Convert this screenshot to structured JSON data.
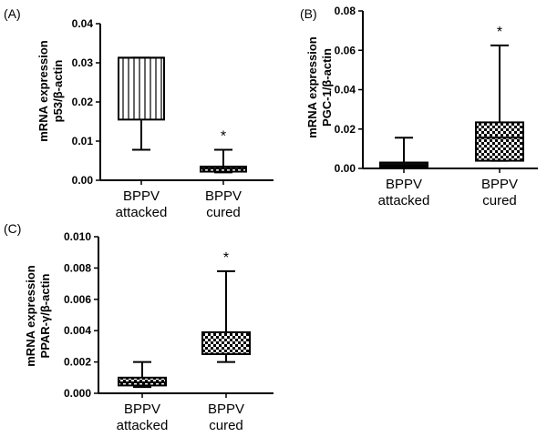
{
  "colors": {
    "ink": "#000000",
    "background": "#ffffff",
    "dark_fill": "#111111"
  },
  "chart_data": [
    {
      "id": "p53",
      "panel_label": "(A)",
      "type": "box",
      "ylabel_line1": "mRNA expression",
      "ylabel_line2": "p53/β-actin",
      "ylim": [
        0,
        0.04
      ],
      "yticks": [
        0.0,
        0.01,
        0.02,
        0.03,
        0.04
      ],
      "ytick_labels": [
        "0.00",
        "0.01",
        "0.02",
        "0.03",
        "0.04"
      ],
      "categories": [
        {
          "line1": "BPPV",
          "line2": "attacked",
          "min": 0.0078,
          "q1": 0.0155,
          "median": 0.0313,
          "q3": 0.0313,
          "max": 0.0313,
          "pattern": "vertical-lines",
          "annotation": ""
        },
        {
          "line1": "BPPV",
          "line2": "cured",
          "min": 0.002,
          "q1": 0.0022,
          "median": 0.003,
          "q3": 0.0035,
          "max": 0.0078,
          "pattern": "checker",
          "annotation": "*"
        }
      ]
    },
    {
      "id": "pgc1",
      "panel_label": "(B)",
      "type": "box",
      "ylabel_line1": "mRNA expression",
      "ylabel_line2": "PGC-1/β-actin",
      "ylim": [
        0,
        0.08
      ],
      "yticks": [
        0.0,
        0.02,
        0.04,
        0.06,
        0.08
      ],
      "ytick_labels": [
        "0.00",
        "0.02",
        "0.04",
        "0.06",
        "0.08"
      ],
      "categories": [
        {
          "line1": "BPPV",
          "line2": "attacked",
          "min": 0.0005,
          "q1": 0.0005,
          "median": 0.0015,
          "q3": 0.003,
          "max": 0.0156,
          "pattern": "solid",
          "annotation": ""
        },
        {
          "line1": "BPPV",
          "line2": "cured",
          "min": 0.0039,
          "q1": 0.0039,
          "median": 0.0156,
          "q3": 0.0234,
          "max": 0.0625,
          "pattern": "checker",
          "annotation": "*"
        }
      ]
    },
    {
      "id": "ppar",
      "panel_label": "(C)",
      "type": "box",
      "ylabel_line1": "mRNA expression",
      "ylabel_line2": "PPAR-γ/β-actin",
      "ylim": [
        0,
        0.01
      ],
      "yticks": [
        0.0,
        0.002,
        0.004,
        0.006,
        0.008,
        0.01
      ],
      "ytick_labels": [
        "0.000",
        "0.002",
        "0.004",
        "0.006",
        "0.008",
        "0.010"
      ],
      "categories": [
        {
          "line1": "BPPV",
          "line2": "attacked",
          "min": 0.0004,
          "q1": 0.0005,
          "median": 0.0007,
          "q3": 0.001,
          "max": 0.002,
          "pattern": "checker",
          "annotation": ""
        },
        {
          "line1": "BPPV",
          "line2": "cured",
          "min": 0.002,
          "q1": 0.0025,
          "median": 0.0025,
          "q3": 0.0039,
          "max": 0.0078,
          "pattern": "checker",
          "annotation": "*"
        }
      ]
    }
  ]
}
